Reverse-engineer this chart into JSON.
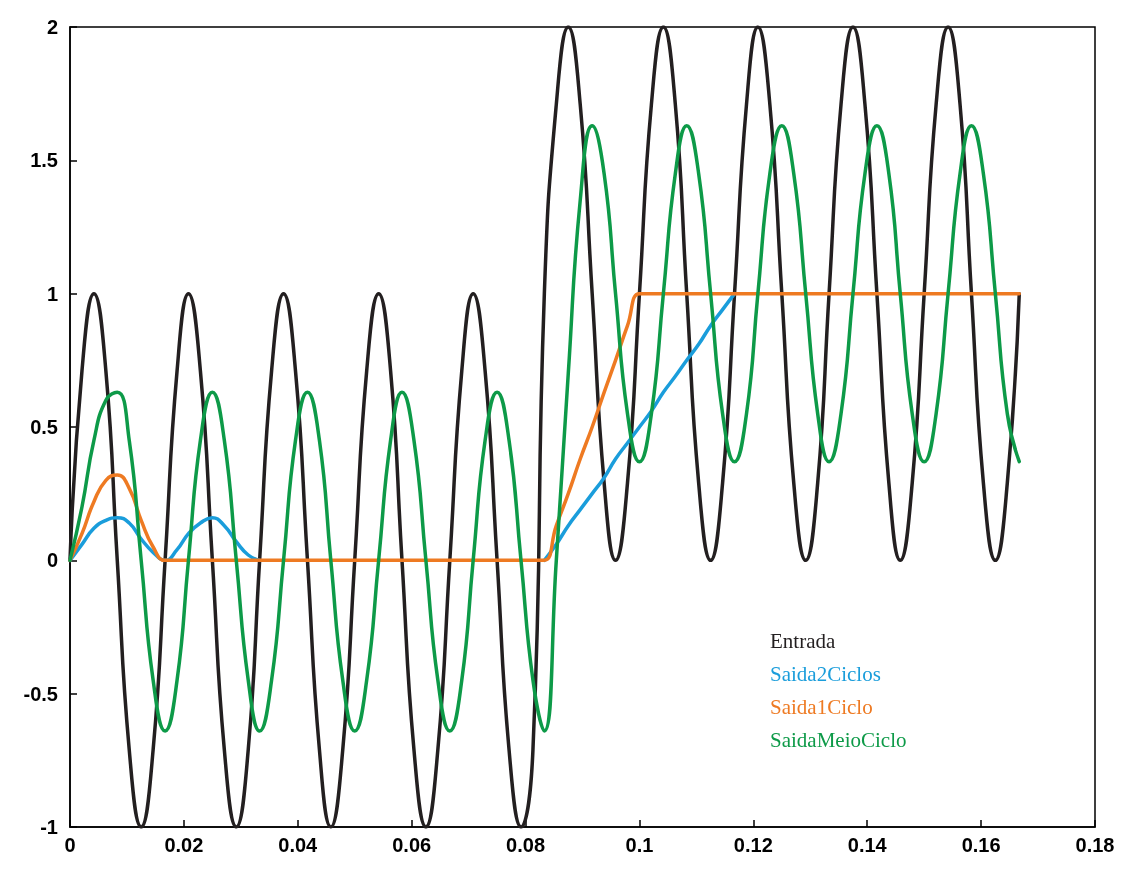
{
  "chart_data": {
    "type": "line",
    "xlim": [
      0,
      0.18
    ],
    "xticks": [
      0,
      0.02,
      0.04,
      0.06,
      0.08,
      0.1,
      0.12,
      0.14,
      0.16,
      0.18
    ],
    "ylim": [
      -1,
      2
    ],
    "yticks": [
      -1,
      -0.5,
      0,
      0.5,
      1,
      1.5,
      2
    ],
    "grid": false,
    "legend": "bottom right",
    "marker": "none",
    "line_style": "solid",
    "x": [
      0,
      0.0021,
      0.0042,
      0.0063,
      0.0083,
      0.0104,
      0.0125,
      0.0146,
      0.0167,
      0.0188,
      0.0208,
      0.0229,
      0.025,
      0.0271,
      0.0292,
      0.0313,
      0.0333,
      0.0354,
      0.0375,
      0.0396,
      0.0417,
      0.0438,
      0.0458,
      0.0479,
      0.05,
      0.0521,
      0.0542,
      0.0563,
      0.0583,
      0.0604,
      0.0625,
      0.0646,
      0.0667,
      0.0688,
      0.0708,
      0.0729,
      0.075,
      0.0771,
      0.0792,
      0.0813,
      0.0833,
      0.0854,
      0.0875,
      0.0896,
      0.0917,
      0.0938,
      0.0958,
      0.0979,
      0.1,
      0.1021,
      0.1042,
      0.1063,
      0.1083,
      0.1104,
      0.1125,
      0.1146,
      0.1167,
      0.1188,
      0.1208,
      0.1229,
      0.125,
      0.1271,
      0.1292,
      0.1313,
      0.1333,
      0.1354,
      0.1375,
      0.1396,
      0.1417,
      0.1438,
      0.1458,
      0.1479,
      0.15,
      0.1521,
      0.1542,
      0.1563,
      0.1583,
      0.1604,
      0.1625,
      0.1646,
      0.1667
    ],
    "series": [
      {
        "name": "Entrada",
        "color": "#231f20",
        "values": [
          0,
          0.71,
          1,
          0.71,
          0,
          -0.71,
          -1,
          -0.71,
          0,
          0.71,
          1,
          0.71,
          0,
          -0.71,
          -1,
          -0.71,
          0,
          0.71,
          1,
          0.71,
          0,
          -0.71,
          -1,
          -0.71,
          0,
          0.71,
          1,
          0.71,
          0,
          -0.71,
          -1,
          -0.71,
          0,
          0.71,
          1,
          0.71,
          0,
          -0.71,
          -1,
          -0.71,
          1,
          1.71,
          2,
          1.71,
          1,
          0.29,
          0,
          0.29,
          1,
          1.71,
          2,
          1.71,
          1,
          0.29,
          0,
          0.29,
          1,
          1.71,
          2,
          1.71,
          1,
          0.29,
          0,
          0.29,
          1,
          1.71,
          2,
          1.71,
          1,
          0.29,
          0,
          0.29,
          1,
          1.71,
          2,
          1.71,
          1,
          0.29,
          0,
          0.29,
          1
        ]
      },
      {
        "name": "Saida2Ciclos",
        "color": "#1a9ddb",
        "values": [
          0,
          0.06,
          0.12,
          0.15,
          0.16,
          0.14,
          0.08,
          0.03,
          0,
          0.04,
          0.1,
          0.14,
          0.16,
          0.13,
          0.07,
          0.02,
          0,
          null,
          null,
          null,
          null,
          null,
          null,
          null,
          null,
          null,
          null,
          null,
          null,
          null,
          null,
          null,
          null,
          null,
          null,
          null,
          null,
          null,
          null,
          null,
          0,
          0.06,
          0.13,
          0.19,
          0.25,
          0.31,
          0.38,
          0.44,
          0.5,
          0.56,
          0.63,
          0.69,
          0.75,
          0.81,
          0.88,
          0.94,
          1,
          null,
          null,
          null,
          null,
          null,
          null,
          null,
          null,
          null,
          null,
          null,
          null,
          null,
          null,
          null,
          null,
          null,
          null,
          null,
          null,
          null,
          null,
          null,
          null
        ]
      },
      {
        "name": "Saida1Ciclo",
        "color": "#ee7a22",
        "values": [
          0,
          0.1,
          0.22,
          0.3,
          0.32,
          0.27,
          0.15,
          0.05,
          0,
          0,
          0,
          0,
          0,
          0,
          0,
          0,
          0,
          0,
          0,
          0,
          0,
          0,
          0,
          0,
          0,
          0,
          0,
          0,
          0,
          0,
          0,
          0,
          0,
          0,
          0,
          0,
          0,
          0,
          0,
          0,
          0,
          0.13,
          0.25,
          0.38,
          0.5,
          0.63,
          0.75,
          0.88,
          1,
          1,
          1,
          1,
          1,
          1,
          1,
          1,
          1,
          1,
          1,
          1,
          1,
          1,
          1,
          1,
          1,
          1,
          1,
          1,
          1,
          1,
          1,
          1,
          1,
          1,
          1,
          1,
          1,
          1,
          1,
          1,
          1
        ]
      },
      {
        "name": "SaidaMeioCiclo",
        "color": "#0d9a48",
        "values": [
          0,
          0.2,
          0.45,
          0.6,
          0.63,
          0.45,
          0,
          -0.45,
          -0.64,
          -0.45,
          0,
          0.45,
          0.63,
          0.45,
          0,
          -0.45,
          -0.64,
          -0.45,
          0,
          0.45,
          0.63,
          0.45,
          0,
          -0.45,
          -0.64,
          -0.45,
          0,
          0.45,
          0.63,
          0.45,
          0,
          -0.45,
          -0.64,
          -0.45,
          0,
          0.45,
          0.63,
          0.45,
          0,
          -0.45,
          -0.64,
          0,
          0.7,
          1.35,
          1.63,
          1.45,
          1,
          0.55,
          0.37,
          0.55,
          1,
          1.45,
          1.63,
          1.45,
          1,
          0.55,
          0.37,
          0.55,
          1,
          1.45,
          1.63,
          1.45,
          1,
          0.55,
          0.37,
          0.55,
          1,
          1.45,
          1.63,
          1.45,
          1,
          0.55,
          0.37,
          0.55,
          1,
          1.45,
          1.63,
          1.45,
          1,
          0.55,
          0.37
        ]
      }
    ]
  }
}
